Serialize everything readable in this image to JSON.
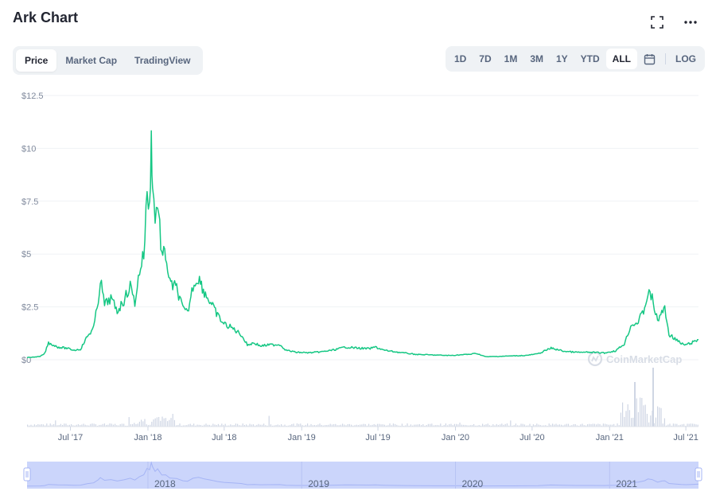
{
  "header": {
    "title": "Ark Chart"
  },
  "tabs": [
    {
      "label": "Price",
      "active": true
    },
    {
      "label": "Market Cap",
      "active": false
    },
    {
      "label": "TradingView",
      "active": false
    }
  ],
  "ranges": [
    {
      "label": "1D",
      "active": false
    },
    {
      "label": "7D",
      "active": false
    },
    {
      "label": "1M",
      "active": false
    },
    {
      "label": "3M",
      "active": false
    },
    {
      "label": "1Y",
      "active": false
    },
    {
      "label": "YTD",
      "active": false
    },
    {
      "label": "ALL",
      "active": true
    }
  ],
  "log_label": "LOG",
  "icons": {
    "fullscreen": "fullscreen-icon",
    "more": "more-icon",
    "calendar": "calendar-icon"
  },
  "colors": {
    "line": "#16c784",
    "volume": "#cfd6e4",
    "navigator_fill": "#cbd5fb",
    "navigator_line": "#a5b4f5"
  },
  "watermark": "CoinMarketCap",
  "chart_data": {
    "type": "line",
    "ylabel_prefix": "$",
    "y_ticks": [
      "$12.5",
      "$10",
      "$7.5",
      "$5",
      "$2.5",
      "$0"
    ],
    "y_tick_values": [
      12.5,
      10,
      7.5,
      5,
      2.5,
      0
    ],
    "ylim": [
      0,
      12.5
    ],
    "x_ticks": [
      "Jul '17",
      "Jan '18",
      "Jul '18",
      "Jan '19",
      "Jul '19",
      "Jan '20",
      "Jul '20",
      "Jan '21",
      "Jul '21"
    ],
    "x_tick_dates": [
      "2017-07-01",
      "2018-01-01",
      "2018-07-01",
      "2019-01-01",
      "2019-07-01",
      "2020-01-01",
      "2020-07-01",
      "2021-01-01",
      "2021-07-01"
    ],
    "xlim": [
      "2017-03-20",
      "2021-07-31"
    ],
    "series": [
      {
        "values": [
          [
            "2017-03-20",
            0.1
          ],
          [
            "2017-04-20",
            0.15
          ],
          [
            "2017-05-01",
            0.3
          ],
          [
            "2017-05-10",
            0.8
          ],
          [
            "2017-06-01",
            0.6
          ],
          [
            "2017-06-20",
            0.55
          ],
          [
            "2017-07-10",
            0.45
          ],
          [
            "2017-07-25",
            0.5
          ],
          [
            "2017-08-10",
            1.1
          ],
          [
            "2017-08-25",
            1.5
          ],
          [
            "2017-09-05",
            2.8
          ],
          [
            "2017-09-10",
            3.8
          ],
          [
            "2017-09-20",
            2.6
          ],
          [
            "2017-10-05",
            2.9
          ],
          [
            "2017-10-20",
            2.3
          ],
          [
            "2017-11-05",
            2.8
          ],
          [
            "2017-11-20",
            3.5
          ],
          [
            "2017-12-01",
            2.7
          ],
          [
            "2017-12-12",
            4.2
          ],
          [
            "2017-12-22",
            5.0
          ],
          [
            "2017-12-30",
            7.8
          ],
          [
            "2018-01-05",
            7.2
          ],
          [
            "2018-01-09",
            10.3
          ],
          [
            "2018-01-12",
            8.5
          ],
          [
            "2018-01-18",
            6.5
          ],
          [
            "2018-01-24",
            7.6
          ],
          [
            "2018-02-03",
            4.9
          ],
          [
            "2018-02-12",
            5.0
          ],
          [
            "2018-02-22",
            3.6
          ],
          [
            "2018-03-10",
            3.4
          ],
          [
            "2018-03-25",
            2.4
          ],
          [
            "2018-04-05",
            2.2
          ],
          [
            "2018-04-18",
            3.5
          ],
          [
            "2018-05-01",
            3.9
          ],
          [
            "2018-05-15",
            3.2
          ],
          [
            "2018-05-30",
            2.7
          ],
          [
            "2018-06-15",
            2.1
          ],
          [
            "2018-06-30",
            1.7
          ],
          [
            "2018-07-20",
            1.5
          ],
          [
            "2018-08-10",
            1.2
          ],
          [
            "2018-08-25",
            0.7
          ],
          [
            "2018-09-10",
            0.8
          ],
          [
            "2018-09-25",
            0.65
          ],
          [
            "2018-10-15",
            0.7
          ],
          [
            "2018-11-10",
            0.72
          ],
          [
            "2018-11-25",
            0.45
          ],
          [
            "2018-12-20",
            0.35
          ],
          [
            "2019-01-20",
            0.33
          ],
          [
            "2019-02-20",
            0.38
          ],
          [
            "2019-03-20",
            0.47
          ],
          [
            "2019-04-15",
            0.6
          ],
          [
            "2019-05-15",
            0.55
          ],
          [
            "2019-06-10",
            0.52
          ],
          [
            "2019-06-25",
            0.6
          ],
          [
            "2019-07-15",
            0.45
          ],
          [
            "2019-08-20",
            0.35
          ],
          [
            "2019-10-01",
            0.25
          ],
          [
            "2019-11-15",
            0.22
          ],
          [
            "2019-12-20",
            0.2
          ],
          [
            "2020-02-05",
            0.26
          ],
          [
            "2020-02-20",
            0.3
          ],
          [
            "2020-03-13",
            0.14
          ],
          [
            "2020-04-15",
            0.16
          ],
          [
            "2020-05-15",
            0.18
          ],
          [
            "2020-06-15",
            0.2
          ],
          [
            "2020-07-15",
            0.28
          ],
          [
            "2020-08-15",
            0.55
          ],
          [
            "2020-09-15",
            0.4
          ],
          [
            "2020-10-15",
            0.35
          ],
          [
            "2020-11-20",
            0.35
          ],
          [
            "2020-12-20",
            0.32
          ],
          [
            "2021-01-15",
            0.42
          ],
          [
            "2021-02-05",
            0.75
          ],
          [
            "2021-02-20",
            1.6
          ],
          [
            "2021-03-10",
            1.8
          ],
          [
            "2021-03-25",
            2.4
          ],
          [
            "2021-04-02",
            3.2
          ],
          [
            "2021-04-12",
            2.9
          ],
          [
            "2021-04-25",
            1.8
          ],
          [
            "2021-05-05",
            2.3
          ],
          [
            "2021-05-12",
            2.4
          ],
          [
            "2021-05-22",
            1.2
          ],
          [
            "2021-06-05",
            1.0
          ],
          [
            "2021-06-20",
            0.75
          ],
          [
            "2021-07-01",
            0.7
          ],
          [
            "2021-07-15",
            0.8
          ],
          [
            "2021-07-31",
            0.95
          ]
        ]
      }
    ],
    "navigator_labels": [
      "2018",
      "2019",
      "2020",
      "2021"
    ],
    "navigator_dates": [
      "2018-01-01",
      "2019-01-01",
      "2020-01-01",
      "2021-01-01"
    ]
  }
}
